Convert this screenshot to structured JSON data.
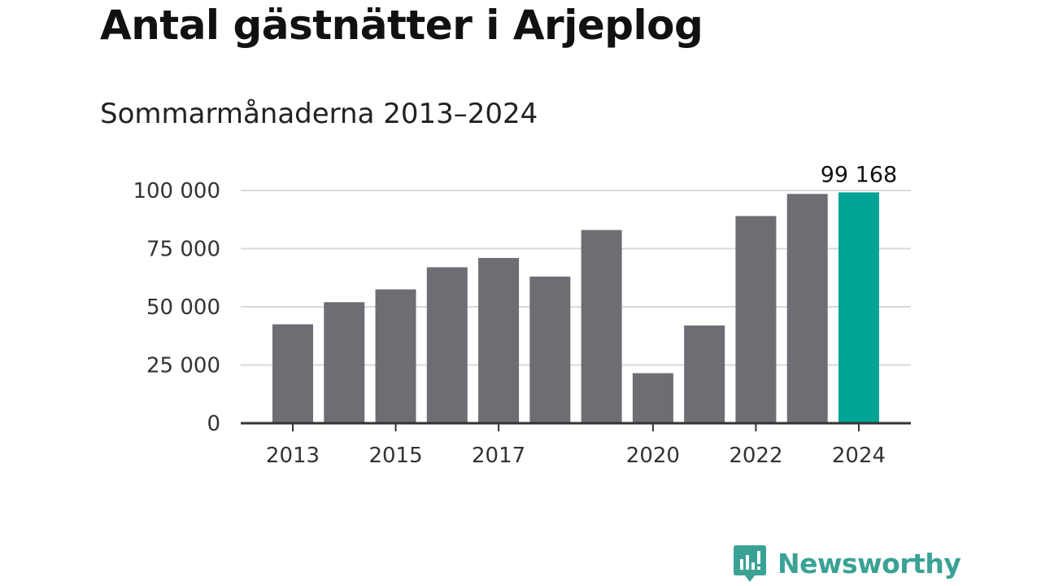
{
  "colors": {
    "bar": "#6e6d74",
    "highlight": "#00a396",
    "grid": "#d9d9d9",
    "axis": "#333333",
    "brand": "#3aa295"
  },
  "chart_data": {
    "type": "bar",
    "title": "Antal gästnätter i Arjeplog",
    "subtitle": "Sommarmånaderna 2013–2024",
    "categories": [
      "2013",
      "2014",
      "2015",
      "2016",
      "2017",
      "2018",
      "2019",
      "2020",
      "2021",
      "2022",
      "2023",
      "2024"
    ],
    "values": [
      42500,
      52000,
      57500,
      67000,
      71000,
      63000,
      83000,
      21500,
      42000,
      89000,
      98500,
      99168
    ],
    "highlight_index": 11,
    "x_tick_labels": [
      "2013",
      "2015",
      "2017",
      "2020",
      "2022",
      "2024"
    ],
    "y_ticks": [
      0,
      25000,
      50000,
      75000,
      100000
    ],
    "y_tick_labels": [
      "0",
      "25 000",
      "50 000",
      "75 000",
      "100 000"
    ],
    "ylim": [
      0,
      100000
    ],
    "data_labels": [
      {
        "index": 11,
        "text": "99 168"
      }
    ],
    "grid": true,
    "legend": "none"
  },
  "brand": {
    "name": "Newsworthy",
    "icon": "newsworthy-logo-icon"
  }
}
